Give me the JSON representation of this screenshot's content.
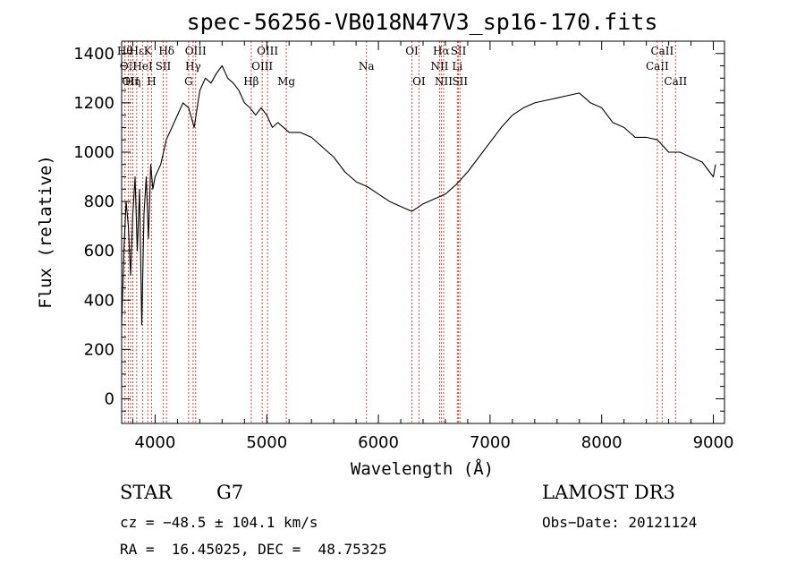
{
  "chart_data": {
    "type": "line",
    "title": "spec-56256-VB018N47V3_sp16-170.fits",
    "xlabel": "Wavelength (Å)",
    "ylabel": "Flux (relative)",
    "xlim": [
      3700,
      9100
    ],
    "ylim": [
      -100,
      1450
    ],
    "x_ticks": [
      4000,
      5000,
      6000,
      7000,
      8000,
      9000
    ],
    "x_tick_labels": [
      "4000",
      "5000",
      "6000",
      "7000",
      "8000",
      "9000"
    ],
    "y_ticks": [
      0,
      200,
      400,
      600,
      800,
      1000,
      1200,
      1400
    ],
    "y_tick_labels": [
      "0",
      "200",
      "400",
      "600",
      "800",
      "1000",
      "1200",
      "1400"
    ],
    "grid": false,
    "series": [
      {
        "color": "#000000",
        "x": [
          3700,
          3720,
          3740,
          3760,
          3780,
          3800,
          3820,
          3840,
          3860,
          3880,
          3900,
          3920,
          3940,
          3960,
          3980,
          4000,
          4050,
          4100,
          4150,
          4200,
          4250,
          4300,
          4350,
          4400,
          4450,
          4500,
          4550,
          4600,
          4650,
          4700,
          4750,
          4800,
          4850,
          4900,
          4950,
          5000,
          5050,
          5100,
          5150,
          5200,
          5300,
          5400,
          5500,
          5600,
          5700,
          5800,
          5900,
          6000,
          6100,
          6200,
          6300,
          6400,
          6500,
          6600,
          6700,
          6800,
          6900,
          7000,
          7100,
          7200,
          7300,
          7400,
          7500,
          7600,
          7700,
          7800,
          7900,
          8000,
          8100,
          8200,
          8300,
          8400,
          8500,
          8600,
          8700,
          8800,
          8900,
          9000,
          9020
        ],
        "values": [
          300,
          600,
          800,
          700,
          500,
          750,
          900,
          600,
          850,
          300,
          750,
          900,
          650,
          950,
          850,
          900,
          950,
          1050,
          1100,
          1150,
          1200,
          1180,
          1100,
          1250,
          1300,
          1280,
          1320,
          1350,
          1300,
          1280,
          1250,
          1200,
          1180,
          1150,
          1180,
          1150,
          1100,
          1120,
          1100,
          1080,
          1080,
          1060,
          1020,
          980,
          920,
          880,
          860,
          830,
          800,
          780,
          760,
          790,
          810,
          830,
          870,
          920,
          980,
          1040,
          1100,
          1150,
          1180,
          1200,
          1210,
          1220,
          1230,
          1240,
          1200,
          1180,
          1120,
          1100,
          1060,
          1060,
          1050,
          1000,
          1000,
          980,
          960,
          900,
          950
        ]
      }
    ],
    "line_markers": [
      {
        "x": 3730,
        "label": "Hθ",
        "row": 1,
        "color": "#d9483b"
      },
      {
        "x": 3760,
        "label": "OII",
        "row": 2,
        "color": "#d9483b"
      },
      {
        "x": 3780,
        "label": "OII",
        "row": 3,
        "color": "#d9483b"
      },
      {
        "x": 3800,
        "label": "Hη",
        "row": 3,
        "color": "#d9483b"
      },
      {
        "x": 3835,
        "label": "Hε",
        "row": 1,
        "color": "#d9483b"
      },
      {
        "x": 3889,
        "label": "HeI",
        "row": 2,
        "color": "#d9483b"
      },
      {
        "x": 3934,
        "label": "K",
        "row": 1,
        "color": "#d9483b"
      },
      {
        "x": 3968,
        "label": "H",
        "row": 3,
        "color": "#d9483b"
      },
      {
        "x": 4072,
        "label": "SII",
        "row": 2,
        "color": "#d9483b"
      },
      {
        "x": 4102,
        "label": "Hδ",
        "row": 1,
        "color": "#d9483b"
      },
      {
        "x": 4300,
        "label": "G",
        "row": 3,
        "color": "#d9483b"
      },
      {
        "x": 4340,
        "label": "Hγ",
        "row": 2,
        "color": "#d9483b"
      },
      {
        "x": 4363,
        "label": "OIII",
        "row": 1,
        "color": "#d9483b"
      },
      {
        "x": 4861,
        "label": "Hβ",
        "row": 3,
        "color": "#d9483b"
      },
      {
        "x": 4959,
        "label": "OIII",
        "row": 2,
        "color": "#d9483b"
      },
      {
        "x": 5007,
        "label": "OIII",
        "row": 1,
        "color": "#d9483b"
      },
      {
        "x": 5175,
        "label": "Mg",
        "row": 3,
        "color": "#d9483b"
      },
      {
        "x": 5893,
        "label": "Na",
        "row": 2,
        "color": "#d9483b"
      },
      {
        "x": 6300,
        "label": "OI",
        "row": 1,
        "color": "#d9483b"
      },
      {
        "x": 6363,
        "label": "OI",
        "row": 3,
        "color": "#d9483b"
      },
      {
        "x": 6548,
        "label": "NII",
        "row": 2,
        "color": "#d9483b"
      },
      {
        "x": 6563,
        "label": "Hα",
        "row": 1,
        "color": "#d9483b"
      },
      {
        "x": 6584,
        "label": "NII",
        "row": 3,
        "color": "#d9483b"
      },
      {
        "x": 6707,
        "label": "Li",
        "row": 2,
        "color": "#d9483b"
      },
      {
        "x": 6717,
        "label": "SII",
        "row": 1,
        "color": "#d9483b"
      },
      {
        "x": 6731,
        "label": "SII",
        "row": 3,
        "color": "#d9483b"
      },
      {
        "x": 8498,
        "label": "CaII",
        "row": 2,
        "color": "#d9483b"
      },
      {
        "x": 8542,
        "label": "CaII",
        "row": 1,
        "color": "#d9483b"
      },
      {
        "x": 8662,
        "label": "CaII",
        "row": 3,
        "color": "#d9483b"
      }
    ]
  },
  "info": {
    "object_class": "STAR",
    "subclass": "G7",
    "survey": "LAMOST DR3",
    "cz": "cz = −48.5 ± 104.1 km/s",
    "obs_date": "Obs−Date: 20121124",
    "coords": "RA =  16.45025, DEC =  48.75325"
  }
}
